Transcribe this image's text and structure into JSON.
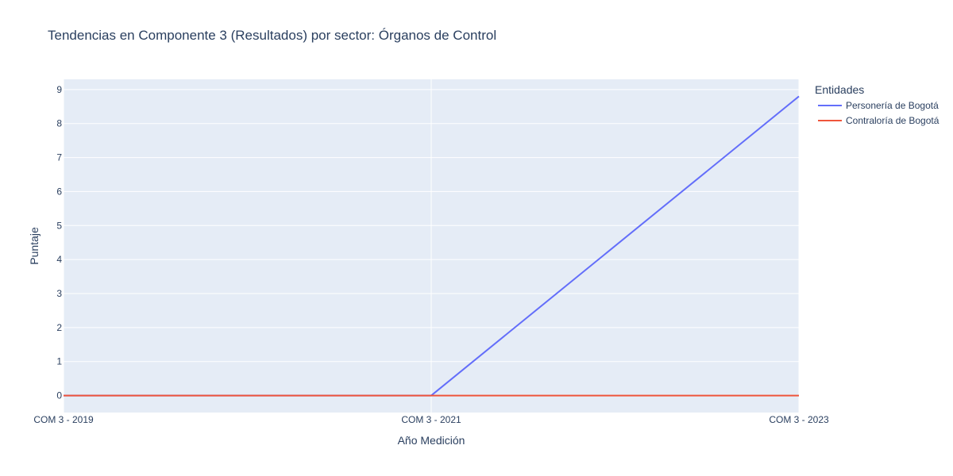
{
  "chart_data": {
    "type": "line",
    "title": "Tendencias en Componente 3 (Resultados) por sector: Órganos de Control",
    "xlabel": "Año Medición",
    "ylabel": "Puntaje",
    "categories": [
      "COM 3 - 2019",
      "COM 3 - 2021",
      "COM 3 - 2023"
    ],
    "ylim": [
      -0.5,
      9.3
    ],
    "yticks": [
      0,
      1,
      2,
      3,
      4,
      5,
      6,
      7,
      8,
      9
    ],
    "grid": true,
    "legend": {
      "title": "Entidades",
      "placement": "right"
    },
    "series": [
      {
        "name": "Personería de Bogotá",
        "color": "#636efa",
        "values": [
          0,
          0,
          8.8
        ]
      },
      {
        "name": "Contraloría de Bogotá",
        "color": "#ef553b",
        "values": [
          0,
          0,
          0
        ]
      }
    ],
    "background_color": "#e5ecf6",
    "grid_color": "#ffffff"
  }
}
